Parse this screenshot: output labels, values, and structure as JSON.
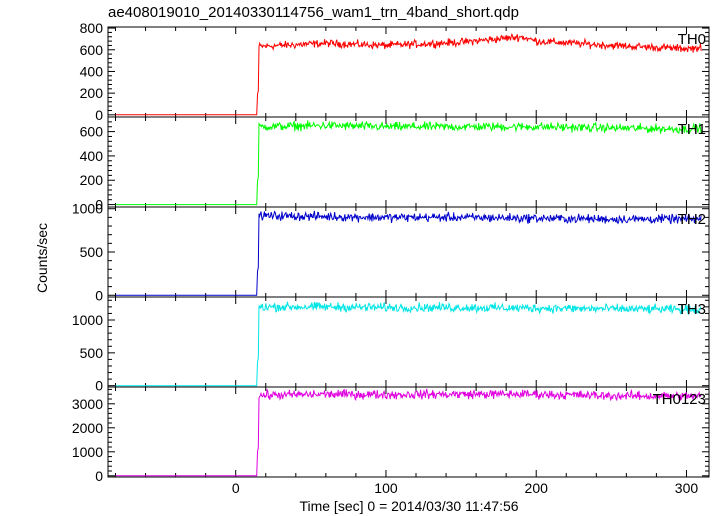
{
  "chart_data": {
    "type": "line",
    "title": "ae408019010_20140330114756_wam1_trn_4band_short.qdp",
    "xlabel": "Time [sec] 0 = 2014/03/30 11:47:56",
    "ylabel": "Counts/sec",
    "xlim": [
      -85,
      315
    ],
    "x_ticks": [
      0,
      100,
      200,
      300
    ],
    "grid": false,
    "onset_time": 15,
    "panels": [
      {
        "name": "TH0",
        "color": "#ff0000",
        "ylim": [
          -20,
          810
        ],
        "y_ticks": [
          0,
          200,
          400,
          600,
          800
        ],
        "baseline": 0,
        "plateau": [
          [
            15,
            630
          ],
          [
            30,
            640
          ],
          [
            60,
            660
          ],
          [
            100,
            640
          ],
          [
            150,
            670
          ],
          [
            190,
            720
          ],
          [
            200,
            680
          ],
          [
            250,
            640
          ],
          [
            300,
            610
          ],
          [
            310,
            620
          ]
        ]
      },
      {
        "name": "TH1",
        "color": "#00ff00",
        "ylim": [
          -20,
          720
        ],
        "y_ticks": [
          0,
          200,
          400,
          600
        ],
        "baseline": 0,
        "plateau": [
          [
            15,
            640
          ],
          [
            60,
            650
          ],
          [
            100,
            640
          ],
          [
            150,
            640
          ],
          [
            200,
            640
          ],
          [
            250,
            630
          ],
          [
            300,
            620
          ],
          [
            310,
            630
          ]
        ]
      },
      {
        "name": "TH2",
        "color": "#0000cc",
        "ylim": [
          -20,
          1020
        ],
        "y_ticks": [
          0,
          500,
          1000
        ],
        "baseline": 0,
        "plateau": [
          [
            15,
            920
          ],
          [
            60,
            910
          ],
          [
            100,
            900
          ],
          [
            150,
            900
          ],
          [
            200,
            890
          ],
          [
            250,
            880
          ],
          [
            300,
            880
          ],
          [
            310,
            880
          ]
        ]
      },
      {
        "name": "TH3",
        "color": "#00e5e5",
        "ylim": [
          -20,
          1350
        ],
        "y_ticks": [
          0,
          500,
          1000
        ],
        "baseline": 0,
        "plateau": [
          [
            15,
            1200
          ],
          [
            60,
            1200
          ],
          [
            100,
            1190
          ],
          [
            150,
            1190
          ],
          [
            200,
            1180
          ],
          [
            250,
            1170
          ],
          [
            300,
            1160
          ],
          [
            310,
            1160
          ]
        ]
      },
      {
        "name": "TH0123",
        "color": "#e000e0",
        "ylim": [
          -50,
          3700
        ],
        "y_ticks": [
          0,
          1000,
          2000,
          3000
        ],
        "baseline": 0,
        "plateau": [
          [
            15,
            3350
          ],
          [
            60,
            3400
          ],
          [
            100,
            3380
          ],
          [
            150,
            3400
          ],
          [
            200,
            3400
          ],
          [
            250,
            3330
          ],
          [
            300,
            3320
          ],
          [
            310,
            3330
          ]
        ]
      }
    ]
  }
}
